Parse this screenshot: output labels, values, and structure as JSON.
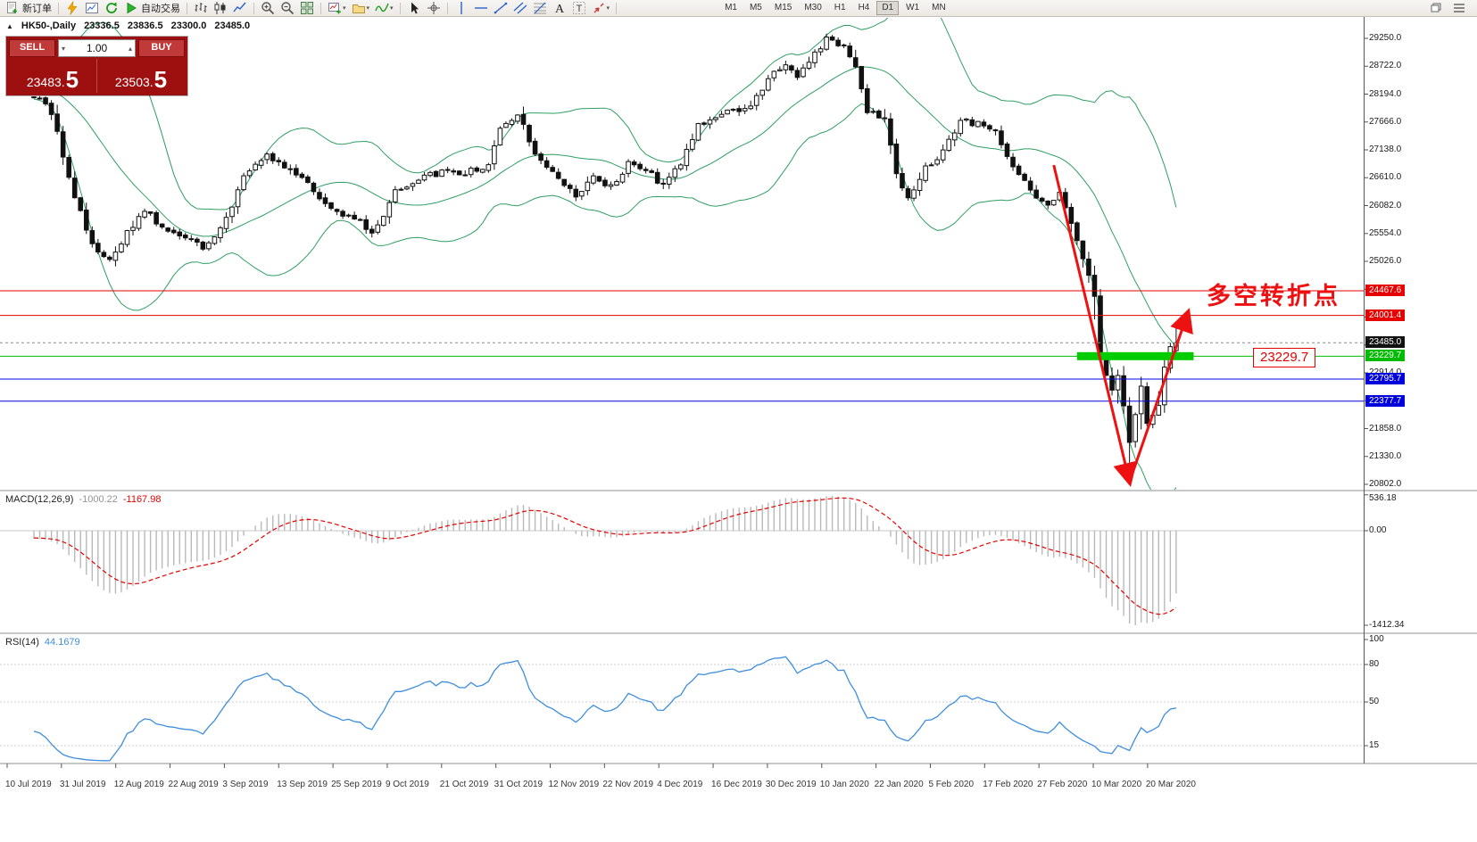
{
  "app": {
    "name": "MetaTrader 4"
  },
  "toolbar": {
    "groups": [
      [
        {
          "name": "new-order-button",
          "icon": "new-order-icon",
          "label": "新订单"
        }
      ],
      [
        {
          "name": "quick-trade-button",
          "icon": "lightning-icon"
        },
        {
          "name": "chart-window-button",
          "icon": "chart-window-icon"
        },
        {
          "name": "refresh-button",
          "icon": "refresh-icon"
        },
        {
          "name": "autotrading-button",
          "icon": "play-icon",
          "label": "自动交易"
        }
      ],
      [
        {
          "name": "bar-chart-button",
          "icon": "bars-icon"
        },
        {
          "name": "candle-chart-button",
          "icon": "candles-icon"
        },
        {
          "name": "line-chart-button",
          "icon": "line-icon"
        }
      ],
      [
        {
          "name": "zoom-in-button",
          "icon": "zoom-in-icon"
        },
        {
          "name": "zoom-out-button",
          "icon": "zoom-out-icon"
        },
        {
          "name": "tile-windows-button",
          "icon": "tile-icon"
        }
      ],
      [
        {
          "name": "new-chart-button",
          "icon": "new-chart-icon",
          "dropdown": true
        },
        {
          "name": "profiles-button",
          "icon": "profiles-icon",
          "dropdown": true
        },
        {
          "name": "indicators-button",
          "icon": "indicators-icon",
          "dropdown": true
        }
      ],
      [
        {
          "name": "cursor-button",
          "icon": "cursor-icon"
        },
        {
          "name": "crosshair-button",
          "icon": "crosshair-icon"
        }
      ],
      [
        {
          "name": "vertical-line-button",
          "icon": "vline-icon"
        },
        {
          "name": "horizontal-line-button",
          "icon": "hline-icon"
        },
        {
          "name": "trendline-button",
          "icon": "trendline-icon"
        },
        {
          "name": "channel-button",
          "icon": "channel-icon"
        },
        {
          "name": "fibonacci-button",
          "icon": "fibo-icon"
        },
        {
          "name": "text-button",
          "icon": "text-icon"
        },
        {
          "name": "label-button",
          "icon": "label-icon"
        },
        {
          "name": "arrows-button",
          "icon": "arrows-icon",
          "dropdown": true
        }
      ]
    ],
    "timeframes": [
      {
        "label": "M1"
      },
      {
        "label": "M5"
      },
      {
        "label": "M15"
      },
      {
        "label": "M30"
      },
      {
        "label": "H1"
      },
      {
        "label": "H4"
      },
      {
        "label": "D1",
        "active": true
      },
      {
        "label": "W1"
      },
      {
        "label": "MN"
      }
    ],
    "window_icons": [
      {
        "name": "window-restore-button",
        "icon": "window-restore-icon"
      },
      {
        "name": "window-menu-button",
        "icon": "window-menu-icon"
      }
    ]
  },
  "chart": {
    "symbol_header": {
      "symbol": "HK50-,Daily",
      "open": "23336.5",
      "high": "23836.5",
      "low": "23300.0",
      "close": "23485.0"
    },
    "trade_widget": {
      "sell_label": "SELL",
      "buy_label": "BUY",
      "volume": "1.00",
      "sell_price": "23483.",
      "sell_pip": "5",
      "buy_price": "23503.",
      "buy_pip": "5"
    },
    "annotation_text": "多空转折点",
    "support_box_label": "23229.7"
  },
  "macd": {
    "label": "MACD(12,26,9)",
    "value_main": "-1000.22",
    "value_signal": "-1167.98",
    "axis_labels": [
      {
        "value": 536.18,
        "text": "536.18"
      },
      {
        "value": 0,
        "text": "0.00"
      },
      {
        "value": -1412.34,
        "text": "-1412.34"
      }
    ]
  },
  "rsi": {
    "label": "RSI(14)",
    "value": "44.1679",
    "axis_labels": [
      {
        "value": 100,
        "text": "100"
      },
      {
        "value": 80,
        "text": "80"
      },
      {
        "value": 50,
        "text": "50"
      },
      {
        "value": 15,
        "text": "15"
      }
    ],
    "levels": [
      80,
      50,
      15
    ]
  },
  "colors": {
    "red_line": "#e60000",
    "blue_line": "#0000dd",
    "green_line": "#00bb00",
    "current_price_label": "#111111",
    "bollinger": "#2f9e63",
    "candle_outline": "#111111",
    "candle_bull_fill": "#ffffff",
    "candle_bear_fill": "#111111",
    "macd_histogram": "#b9b9b9",
    "macd_signal": "#e60000",
    "rsi_line": "#3f8ede",
    "annotation_red": "#ee1111",
    "support_bar_green": "#00cc00",
    "widget_bg": "#9e1010",
    "widget_button": "#c13a3a"
  },
  "chart_data": {
    "type": "candlestick",
    "symbol": "HK50-",
    "timeframe": "Daily",
    "current_price": 23485.0,
    "price_axis": {
      "min": 20802.0,
      "step": 528.0,
      "tick_labels": [
        "20802.0",
        "21330.0",
        "21858.0",
        "22386.0",
        "22914.0",
        "23442.0",
        "23970.0",
        "24498.0",
        "25026.0",
        "25554.0",
        "26082.0",
        "26610.0",
        "27138.0",
        "27666.0",
        "28194.0",
        "28722.0",
        "29250.0"
      ]
    },
    "price_lines": [
      {
        "price": 24467.6,
        "label": "24467.6",
        "color_key": "red_line"
      },
      {
        "price": 24001.4,
        "label": "24001.4",
        "color_key": "red_line"
      },
      {
        "price": 23485.0,
        "label": "23485.0",
        "color_key": "current_price_label",
        "dashed": true
      },
      {
        "price": 23229.7,
        "label": "23229.7",
        "color_key": "green_line"
      },
      {
        "price": 22795.7,
        "label": "22795.7",
        "color_key": "blue_line"
      },
      {
        "price": 22377.7,
        "label": "22377.7",
        "color_key": "blue_line"
      }
    ],
    "date_labels": [
      "10 Jul 2019",
      "31 Jul 2019",
      "12 Aug 2019",
      "22 Aug 2019",
      "3 Sep 2019",
      "13 Sep 2019",
      "25 Sep 2019",
      "9 Oct 2019",
      "21 Oct 2019",
      "31 Oct 2019",
      "12 Nov 2019",
      "22 Nov 2019",
      "4 Dec 2019",
      "16 Dec 2019",
      "30 Dec 2019",
      "10 Jan 2020",
      "22 Jan 2020",
      "5 Feb 2020",
      "17 Feb 2020",
      "27 Feb 2020",
      "10 Mar 2020",
      "20 Mar 2020"
    ],
    "candle_count": 197,
    "close_path_anchors": [
      [
        0,
        28150
      ],
      [
        2,
        28050
      ],
      [
        4,
        27500
      ],
      [
        6,
        26600
      ],
      [
        8,
        25950
      ],
      [
        10,
        25350
      ],
      [
        13,
        25080
      ],
      [
        16,
        25550
      ],
      [
        19,
        26020
      ],
      [
        22,
        25680
      ],
      [
        26,
        25520
      ],
      [
        29,
        25300
      ],
      [
        31,
        25450
      ],
      [
        34,
        26100
      ],
      [
        36,
        26620
      ],
      [
        40,
        27030
      ],
      [
        45,
        26700
      ],
      [
        48,
        26350
      ],
      [
        51,
        26020
      ],
      [
        55,
        25850
      ],
      [
        58,
        25600
      ],
      [
        60,
        25900
      ],
      [
        62,
        26350
      ],
      [
        66,
        26600
      ],
      [
        70,
        26700
      ],
      [
        74,
        26700
      ],
      [
        78,
        26870
      ],
      [
        80,
        27540
      ],
      [
        83,
        27790
      ],
      [
        86,
        27110
      ],
      [
        89,
        26700
      ],
      [
        91,
        26440
      ],
      [
        93,
        26270
      ],
      [
        96,
        26610
      ],
      [
        99,
        26440
      ],
      [
        102,
        26860
      ],
      [
        105,
        26780
      ],
      [
        108,
        26440
      ],
      [
        111,
        26860
      ],
      [
        114,
        27620
      ],
      [
        117,
        27790
      ],
      [
        120,
        27870
      ],
      [
        123,
        27960
      ],
      [
        126,
        28470
      ],
      [
        129,
        28800
      ],
      [
        131,
        28550
      ],
      [
        134,
        28970
      ],
      [
        136,
        29220
      ],
      [
        139,
        29140
      ],
      [
        141,
        28720
      ],
      [
        143,
        27870
      ],
      [
        146,
        27710
      ],
      [
        148,
        26700
      ],
      [
        150,
        26180
      ],
      [
        153,
        26780
      ],
      [
        156,
        27110
      ],
      [
        159,
        27710
      ],
      [
        162,
        27620
      ],
      [
        165,
        27450
      ],
      [
        168,
        26860
      ],
      [
        171,
        26350
      ],
      [
        174,
        26100
      ],
      [
        176,
        26350
      ],
      [
        178,
        25800
      ],
      [
        180,
        25090
      ],
      [
        182,
        24400
      ],
      [
        183,
        23200
      ],
      [
        184,
        22900
      ],
      [
        185,
        22550
      ],
      [
        186,
        22890
      ],
      [
        187,
        22300
      ],
      [
        188,
        21600
      ],
      [
        189,
        22100
      ],
      [
        190,
        22720
      ],
      [
        191,
        21970
      ],
      [
        192,
        22150
      ],
      [
        193,
        22310
      ],
      [
        194,
        23060
      ],
      [
        195,
        23400
      ],
      [
        196,
        23485
      ]
    ],
    "last_candle": {
      "open": 23336.5,
      "high": 23836.5,
      "low": 23300.0,
      "close": 23485.0
    },
    "crash_low": {
      "candle": 188,
      "low": 20950
    },
    "indicators": [
      {
        "name": "Bollinger Bands",
        "period": 20,
        "deviation": 2
      },
      {
        "name": "MACD",
        "fast": 12,
        "slow": 26,
        "signal": 9,
        "current_main": -1000.22,
        "current_signal": -1167.98,
        "scale_max": 536.18,
        "scale_min": -1412.34
      },
      {
        "name": "RSI",
        "period": 14,
        "current": 44.1679
      }
    ],
    "annotations": {
      "support_bar": {
        "price": 23229.7,
        "from_candle": 179,
        "to_candle": 199
      },
      "arrow_down": {
        "from_candle": 175,
        "from_price": 26850,
        "to_candle": 188,
        "to_price": 20850
      },
      "arrow_up": {
        "from_candle": 188,
        "from_price": 20850,
        "to_candle": 198,
        "to_price": 24050
      }
    }
  }
}
